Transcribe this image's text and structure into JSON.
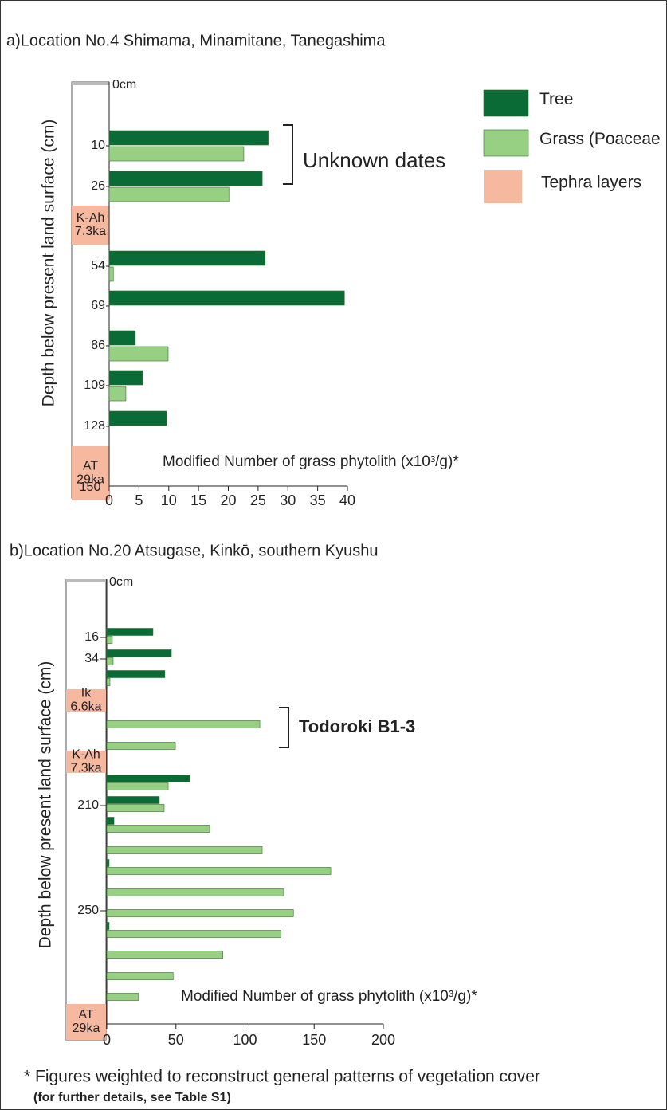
{
  "chart_data": [
    {
      "type": "bar",
      "orientation": "horizontal",
      "title": "a)Location No.4 Shimama, Minamitane, Tanegashima",
      "x_label": "Modified Number of grass phytolith (x10³/g)*",
      "y_label": "Depth below present land surface (cm)",
      "surface_label": "0cm",
      "bottom_label": "150",
      "categories": [
        "10",
        "26",
        "54",
        "69",
        "86",
        "109",
        "128"
      ],
      "series": [
        {
          "name": "Tree",
          "color": "#0b6b36",
          "values": [
            26.7,
            25.7,
            26.2,
            39.5,
            4.4,
            5.6,
            9.6
          ]
        },
        {
          "name": "Grass (Poaceae",
          "color": "#98d083",
          "values": [
            22.6,
            20.1,
            0.7,
            null,
            9.9,
            2.8,
            null
          ]
        }
      ],
      "xlim": [
        0,
        40
      ],
      "xticks": [
        0,
        5,
        10,
        15,
        20,
        25,
        30,
        35,
        40
      ],
      "tephra_color": "#f6b9a0",
      "tephra_legend": "Tephra layers",
      "tephra": [
        [
          "K-Ah",
          "7.3ka"
        ],
        [
          "AT",
          "29ka"
        ]
      ],
      "annotation": "Unknown dates"
    },
    {
      "type": "bar",
      "orientation": "horizontal",
      "title": "b)Location No.20 Atsugase, Kinkō, southern Kyushu",
      "x_label": "Modified Number of grass phytolith (x10³/g)*",
      "y_label": "Depth below present land surface (cm)",
      "surface_label": "0cm",
      "categories": [
        "16",
        "34",
        null,
        null,
        null,
        null,
        "210",
        null,
        null,
        null,
        null,
        "250",
        null,
        null,
        null,
        null
      ],
      "series": [
        {
          "color": "#0b6b36",
          "values": [
            33.4,
            46.7,
            42,
            null,
            null,
            60,
            38,
            5.2,
            null,
            1.7,
            null,
            null,
            1.7,
            null,
            null,
            null
          ]
        },
        {
          "color": "#98d083",
          "values": [
            4,
            4.6,
            2.3,
            110.7,
            49.6,
            44.4,
            41.5,
            74.4,
            112.4,
            162,
            128,
            135,
            126,
            84,
            48,
            23
          ]
        }
      ],
      "xlim": [
        0,
        200
      ],
      "xticks": [
        0,
        50,
        100,
        150,
        200
      ],
      "tephra_color": "#f6b9a0",
      "tephra": [
        [
          "Ik",
          "6.6ka"
        ],
        [
          "K-Ah",
          "7.3ka"
        ],
        [
          "AT",
          "29ka"
        ]
      ],
      "annotation": "Todoroki B1-3"
    }
  ],
  "footnote": [
    "* Figures weighted to reconstruct general patterns of vegetation cover",
    "(for further details, see Table S1)"
  ]
}
